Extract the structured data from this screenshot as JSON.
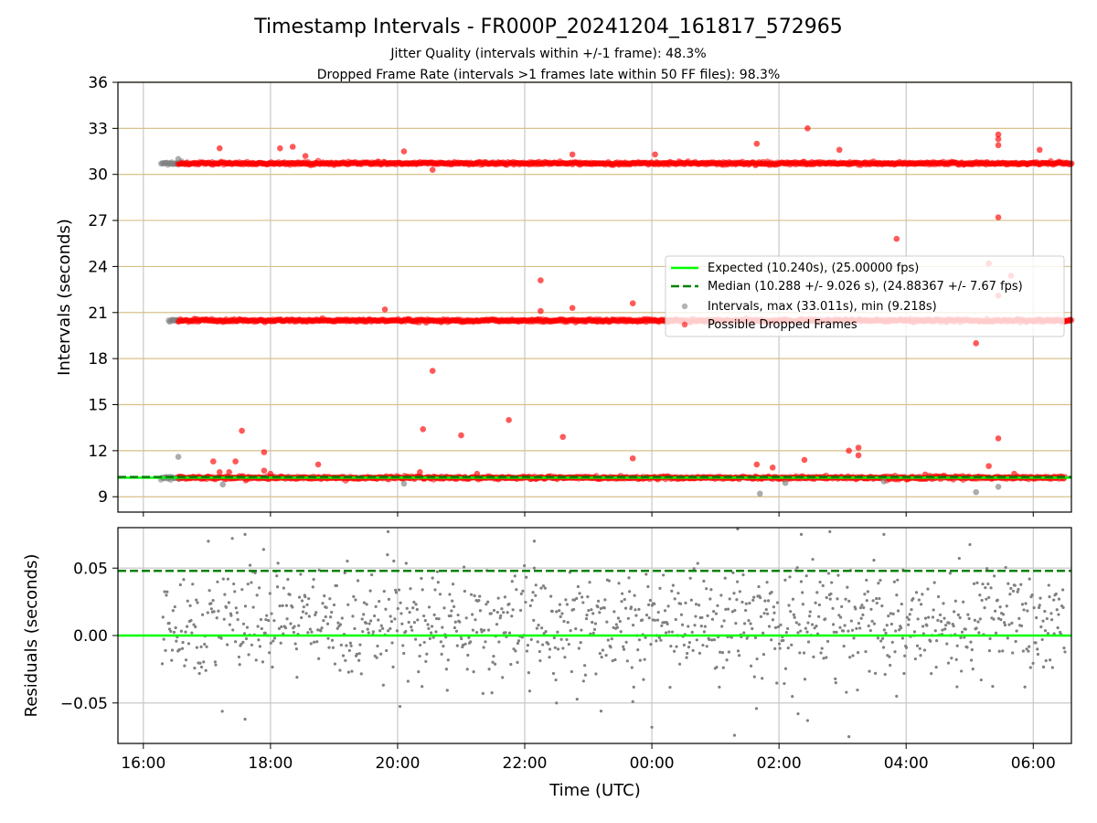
{
  "chart_data": [
    {
      "type": "scatter",
      "title": "Timestamp Intervals - FR000P_20241204_161817_572965",
      "subtitle_lines": [
        "Jitter Quality (intervals within +/-1 frame): 48.3%",
        "Dropped Frame Rate (intervals >1 frames late within 50 FF files): 98.3%"
      ],
      "ylabel": "Intervals (seconds)",
      "xlim_hours": [
        15.6,
        30.6
      ],
      "ylim": [
        8,
        36
      ],
      "yticks": [
        9,
        12,
        15,
        18,
        21,
        24,
        27,
        30,
        33,
        36
      ],
      "xticks": [
        16,
        18,
        20,
        22,
        24,
        26,
        28,
        30
      ],
      "grid": "x-vertical gray; y horizontal tan",
      "legend_placement": "center-right",
      "legend": [
        "Expected (10.240s), (25.00000 fps)",
        "Median (10.288 +/- 9.026 s), (24.88367 +/- 7.67 fps)",
        "Intervals, max (33.011s), min (9.218s)",
        "Possible Dropped Frames"
      ],
      "expected": 10.24,
      "median": 10.288,
      "series": [
        {
          "name": "Intervals, max (33.011s), min (9.218s)",
          "color": "#808080",
          "bands": [
            {
              "y": 10.24,
              "x_start": 16.28,
              "x_end": 16.6
            },
            {
              "y": 20.48,
              "x_start": 16.4,
              "x_end": 16.55
            },
            {
              "y": 30.72,
              "x_start": 16.28,
              "x_end": 16.6
            }
          ],
          "points": [
            {
              "x": 16.55,
              "y": 11.6
            },
            {
              "x": 16.55,
              "y": 31.0
            },
            {
              "x": 17.25,
              "y": 9.8
            },
            {
              "x": 20.1,
              "y": 9.85
            },
            {
              "x": 25.7,
              "y": 9.2
            },
            {
              "x": 26.1,
              "y": 9.9
            },
            {
              "x": 29.1,
              "y": 9.3
            },
            {
              "x": 29.45,
              "y": 9.65
            },
            {
              "x": 27.65,
              "y": 10.0
            }
          ]
        },
        {
          "name": "Possible Dropped Frames",
          "color": "#ff0000",
          "bands": [
            {
              "y": 10.24,
              "x_start": 16.55,
              "x_end": 30.5
            },
            {
              "y": 20.48,
              "x_start": 16.55,
              "x_end": 30.6
            },
            {
              "y": 30.72,
              "x_start": 16.55,
              "x_end": 30.6
            }
          ],
          "points": [
            {
              "x": 17.2,
              "y": 31.7
            },
            {
              "x": 18.15,
              "y": 31.7
            },
            {
              "x": 18.35,
              "y": 31.8
            },
            {
              "x": 18.55,
              "y": 31.2
            },
            {
              "x": 20.1,
              "y": 31.5
            },
            {
              "x": 20.55,
              "y": 30.3
            },
            {
              "x": 22.75,
              "y": 31.3
            },
            {
              "x": 24.05,
              "y": 31.3
            },
            {
              "x": 25.65,
              "y": 32.0
            },
            {
              "x": 26.45,
              "y": 33.0
            },
            {
              "x": 26.95,
              "y": 31.6
            },
            {
              "x": 29.45,
              "y": 32.6
            },
            {
              "x": 29.45,
              "y": 32.3
            },
            {
              "x": 29.45,
              "y": 31.9
            },
            {
              "x": 30.1,
              "y": 31.6
            },
            {
              "x": 29.45,
              "y": 27.2
            },
            {
              "x": 27.85,
              "y": 25.8
            },
            {
              "x": 29.3,
              "y": 24.2
            },
            {
              "x": 22.25,
              "y": 23.1
            },
            {
              "x": 22.25,
              "y": 21.1
            },
            {
              "x": 22.75,
              "y": 21.3
            },
            {
              "x": 23.7,
              "y": 21.6
            },
            {
              "x": 19.8,
              "y": 21.2
            },
            {
              "x": 29.45,
              "y": 22.1
            },
            {
              "x": 29.65,
              "y": 23.4
            },
            {
              "x": 29.1,
              "y": 19.0
            },
            {
              "x": 20.55,
              "y": 17.2
            },
            {
              "x": 21.75,
              "y": 14.0
            },
            {
              "x": 17.55,
              "y": 13.3
            },
            {
              "x": 20.4,
              "y": 13.4
            },
            {
              "x": 21.0,
              "y": 13.0
            },
            {
              "x": 22.6,
              "y": 12.9
            },
            {
              "x": 17.9,
              "y": 11.9
            },
            {
              "x": 17.1,
              "y": 11.3
            },
            {
              "x": 17.45,
              "y": 11.3
            },
            {
              "x": 18.75,
              "y": 11.1
            },
            {
              "x": 23.7,
              "y": 11.5
            },
            {
              "x": 25.65,
              "y": 11.1
            },
            {
              "x": 25.9,
              "y": 10.9
            },
            {
              "x": 26.4,
              "y": 11.4
            },
            {
              "x": 27.1,
              "y": 12.0
            },
            {
              "x": 27.25,
              "y": 12.2
            },
            {
              "x": 27.25,
              "y": 11.7
            },
            {
              "x": 29.45,
              "y": 12.8
            },
            {
              "x": 29.3,
              "y": 11.0
            },
            {
              "x": 17.9,
              "y": 10.7
            },
            {
              "x": 17.2,
              "y": 10.6
            },
            {
              "x": 17.35,
              "y": 10.6
            },
            {
              "x": 18.0,
              "y": 10.5
            },
            {
              "x": 20.35,
              "y": 10.6
            },
            {
              "x": 21.25,
              "y": 10.5
            },
            {
              "x": 29.7,
              "y": 10.5
            },
            {
              "x": 28.3,
              "y": 10.45
            }
          ]
        }
      ]
    },
    {
      "type": "scatter",
      "xlabel": "Time (UTC)",
      "ylabel": "Residuals (seconds)",
      "xlim_hours": [
        15.6,
        30.6
      ],
      "ylim": [
        -0.08,
        0.08
      ],
      "yticks": [
        -0.05,
        0.0,
        0.05
      ],
      "ytick_labels": [
        "−0.05",
        "0.00",
        "0.05"
      ],
      "xticks": [
        16,
        18,
        20,
        22,
        24,
        26,
        28,
        30
      ],
      "xtick_labels": [
        "16:00",
        "18:00",
        "20:00",
        "22:00",
        "00:00",
        "02:00",
        "04:00",
        "06:00"
      ],
      "grid": true,
      "expected": 0.0,
      "median": 0.048,
      "series": [
        {
          "color": "#808080",
          "x_start": 16.3,
          "x_end": 30.5,
          "count": 1100,
          "std": 0.02,
          "outliers": [
            {
              "x": 17.6,
              "y": 0.075
            },
            {
              "x": 19.85,
              "y": 0.077
            },
            {
              "x": 22.15,
              "y": 0.07
            },
            {
              "x": 25.35,
              "y": 0.079
            },
            {
              "x": 26.35,
              "y": 0.075
            },
            {
              "x": 26.8,
              "y": 0.077
            },
            {
              "x": 27.65,
              "y": 0.075
            },
            {
              "x": 17.6,
              "y": -0.062
            },
            {
              "x": 22.5,
              "y": -0.05
            },
            {
              "x": 23.2,
              "y": -0.056
            },
            {
              "x": 23.7,
              "y": -0.049
            },
            {
              "x": 24.0,
              "y": -0.068
            },
            {
              "x": 25.3,
              "y": -0.074
            },
            {
              "x": 26.3,
              "y": -0.058
            },
            {
              "x": 26.45,
              "y": -0.063
            },
            {
              "x": 27.1,
              "y": -0.075
            },
            {
              "x": 27.85,
              "y": -0.045
            },
            {
              "x": 28.8,
              "y": -0.038
            }
          ]
        }
      ]
    }
  ]
}
